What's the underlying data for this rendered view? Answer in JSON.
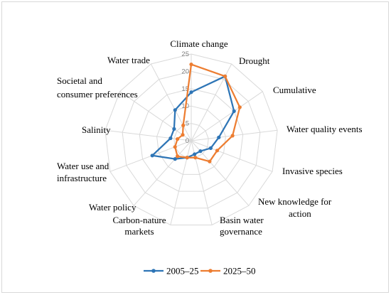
{
  "chart_data": {
    "type": "radar",
    "title": "",
    "categories": [
      "Climate change",
      "Drought",
      "Cumulative",
      "Water quality events",
      "Invasive species",
      "New knowledge for action",
      "Basin water governance",
      "Carbon-nature markets",
      "Water policy",
      "Water use and infrastructure",
      "Salinity",
      "Societal and consumer preferences",
      "Water trade"
    ],
    "r_ticks": [
      "0",
      "5",
      "10",
      "15",
      "20",
      "25"
    ],
    "rlim": [
      0,
      25
    ],
    "grid": true,
    "legend_position": "bottom",
    "series": [
      {
        "name": "2005–25",
        "color": "#2e75b6",
        "values": [
          14,
          21,
          15,
          8,
          6,
          4,
          4,
          5,
          7,
          12,
          6,
          6,
          10
        ]
      },
      {
        "name": "2025–50",
        "color": "#ed7d31",
        "values": [
          22,
          21,
          17,
          12,
          8,
          8,
          5,
          5,
          6,
          5,
          4,
          3,
          5
        ]
      }
    ]
  }
}
